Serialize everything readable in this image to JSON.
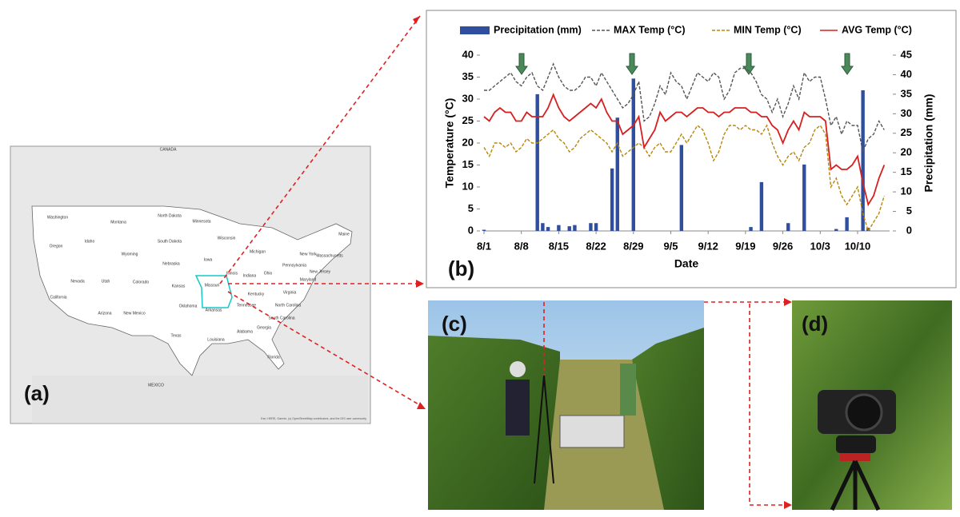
{
  "panels": {
    "a": "(a)",
    "b": "(b)",
    "c": "(c)",
    "d": "(d)"
  },
  "map": {
    "labels": [
      "CANADA",
      "MEXICO",
      "Washington",
      "Oregon",
      "California",
      "Idaho",
      "Nevada",
      "Utah",
      "Arizona",
      "Montana",
      "Wyoming",
      "Colorado",
      "New Mexico",
      "North Dakota",
      "South Dakota",
      "Nebraska",
      "Kansas",
      "Oklahoma",
      "Texas",
      "Minnesota",
      "Iowa",
      "Missouri",
      "Arkansas",
      "Louisiana",
      "Wisconsin",
      "Illinois",
      "Michigan",
      "Indiana",
      "Ohio",
      "Kentucky",
      "Tennessee",
      "Alabama",
      "Georgia",
      "Florida",
      "South Carolina",
      "North Carolina",
      "Virginia",
      "Pennsylvania",
      "New York",
      "Maine",
      "Massachusetts",
      "New Jersey",
      "Maryland"
    ],
    "attribution": "Esri, HERE, Garmin, (c) OpenStreetMap contributors, and the GIS user community"
  },
  "chart_data": {
    "type": "combo",
    "xlabel": "Date",
    "ylabel": "Temperature (°C)",
    "y2label": "Precipitation (mm)",
    "x": [
      0,
      1,
      2,
      3,
      4,
      5,
      6,
      7,
      8,
      9,
      10,
      11,
      12,
      13,
      14,
      15,
      16,
      17,
      18,
      19,
      20,
      21,
      22,
      23,
      24,
      25,
      26,
      27,
      28,
      29,
      30,
      31,
      32,
      33,
      34,
      35,
      36,
      37,
      38,
      39,
      40,
      41,
      42,
      43,
      44,
      45,
      46,
      47,
      48,
      49,
      50,
      51,
      52,
      53,
      54,
      55,
      56,
      57,
      58,
      59,
      60,
      61,
      62,
      63,
      64,
      65,
      66,
      67,
      68,
      69,
      70,
      71,
      72,
      73,
      74,
      75
    ],
    "xlim": [
      0,
      76
    ],
    "xticks": [
      {
        "value": 0,
        "label": "8/1"
      },
      {
        "value": 7,
        "label": "8/8"
      },
      {
        "value": 14,
        "label": "8/15"
      },
      {
        "value": 21,
        "label": "8/22"
      },
      {
        "value": 28,
        "label": "8/29"
      },
      {
        "value": 35,
        "label": "9/5"
      },
      {
        "value": 42,
        "label": "9/12"
      },
      {
        "value": 49,
        "label": "9/19"
      },
      {
        "value": 56,
        "label": "9/26"
      },
      {
        "value": 63,
        "label": "10/3"
      },
      {
        "value": 70,
        "label": "10/10"
      }
    ],
    "ylim": [
      0,
      40
    ],
    "yticks": [
      0,
      5,
      10,
      15,
      20,
      25,
      30,
      35,
      40
    ],
    "y2lim": [
      0,
      45
    ],
    "y2ticks": [
      0,
      5,
      10,
      15,
      20,
      25,
      30,
      35,
      40,
      45
    ],
    "series": [
      {
        "name": "Precipitation (mm)",
        "type": "bar",
        "axis": "y2",
        "color": "#2f4f9e",
        "values": [
          0.3,
          0,
          0,
          0,
          0,
          0,
          0,
          0,
          0,
          0,
          35,
          2,
          1,
          0,
          1.5,
          0,
          1.2,
          1.5,
          0,
          0,
          2,
          2,
          0,
          0,
          16,
          29,
          0,
          0,
          39,
          0,
          0,
          0,
          0,
          0,
          0,
          0,
          0,
          22,
          0,
          0,
          0,
          0,
          0,
          0,
          0,
          0,
          0,
          0,
          0,
          0,
          1,
          0,
          12.5,
          0,
          0,
          0,
          0,
          2,
          0,
          0,
          17,
          0,
          0,
          0,
          0,
          0,
          0.5,
          0,
          3.5,
          0,
          0,
          36,
          0.8,
          0,
          0,
          0
        ]
      },
      {
        "name": "MAX Temp (°C)",
        "type": "line",
        "style": "dashed",
        "color": "#555555",
        "values": [
          32,
          32,
          33,
          34,
          35,
          36,
          34,
          33,
          35,
          36,
          33,
          32,
          35,
          38,
          35,
          33,
          32,
          32,
          33,
          35,
          35,
          33,
          36,
          34,
          32,
          30,
          28,
          29,
          31,
          34,
          25,
          26,
          29,
          33,
          31,
          36,
          34,
          33,
          30,
          33,
          36,
          35,
          34,
          36,
          35,
          30,
          32,
          36,
          37,
          37,
          36,
          34,
          31,
          30,
          27,
          30,
          26,
          29,
          33,
          30,
          36,
          34,
          35,
          35,
          30,
          24,
          26,
          22,
          25,
          24,
          24,
          18,
          21,
          22,
          25,
          23
        ]
      },
      {
        "name": "MIN Temp (°C)",
        "type": "line",
        "style": "dashed",
        "color": "#b8860b",
        "values": [
          19,
          17,
          20,
          20,
          19,
          20,
          18,
          19,
          21,
          20,
          20,
          21,
          22,
          23,
          21,
          20,
          18,
          19,
          21,
          22,
          23,
          22,
          21,
          20,
          18,
          20,
          17,
          18,
          19,
          20,
          19,
          17,
          19,
          20,
          18,
          18,
          20,
          22,
          20,
          22,
          24,
          23,
          20,
          16,
          18,
          22,
          24,
          24,
          23,
          24,
          23,
          23,
          22,
          24,
          20,
          17,
          15,
          17,
          18,
          16,
          19,
          20,
          23,
          24,
          22,
          10,
          12,
          8,
          6,
          8,
          10,
          4,
          0,
          2,
          4,
          8
        ]
      },
      {
        "name": "AVG Temp (°C)",
        "type": "line",
        "style": "solid",
        "color": "#d62020",
        "values": [
          26,
          25,
          27,
          28,
          27,
          27,
          25,
          25,
          27,
          26,
          26,
          26,
          28,
          31,
          28,
          26,
          25,
          26,
          27,
          28,
          29,
          28,
          30,
          27,
          25,
          25,
          22,
          23,
          24,
          26,
          19,
          21,
          23,
          27,
          25,
          26,
          27,
          27,
          26,
          27,
          28,
          28,
          27,
          27,
          26,
          27,
          27,
          28,
          28,
          28,
          27,
          27,
          26,
          26,
          24,
          23,
          20,
          23,
          25,
          23,
          27,
          26,
          26,
          26,
          25,
          14,
          15,
          14,
          14,
          15,
          17,
          11,
          6,
          8,
          12,
          15
        ]
      }
    ]
  }
}
